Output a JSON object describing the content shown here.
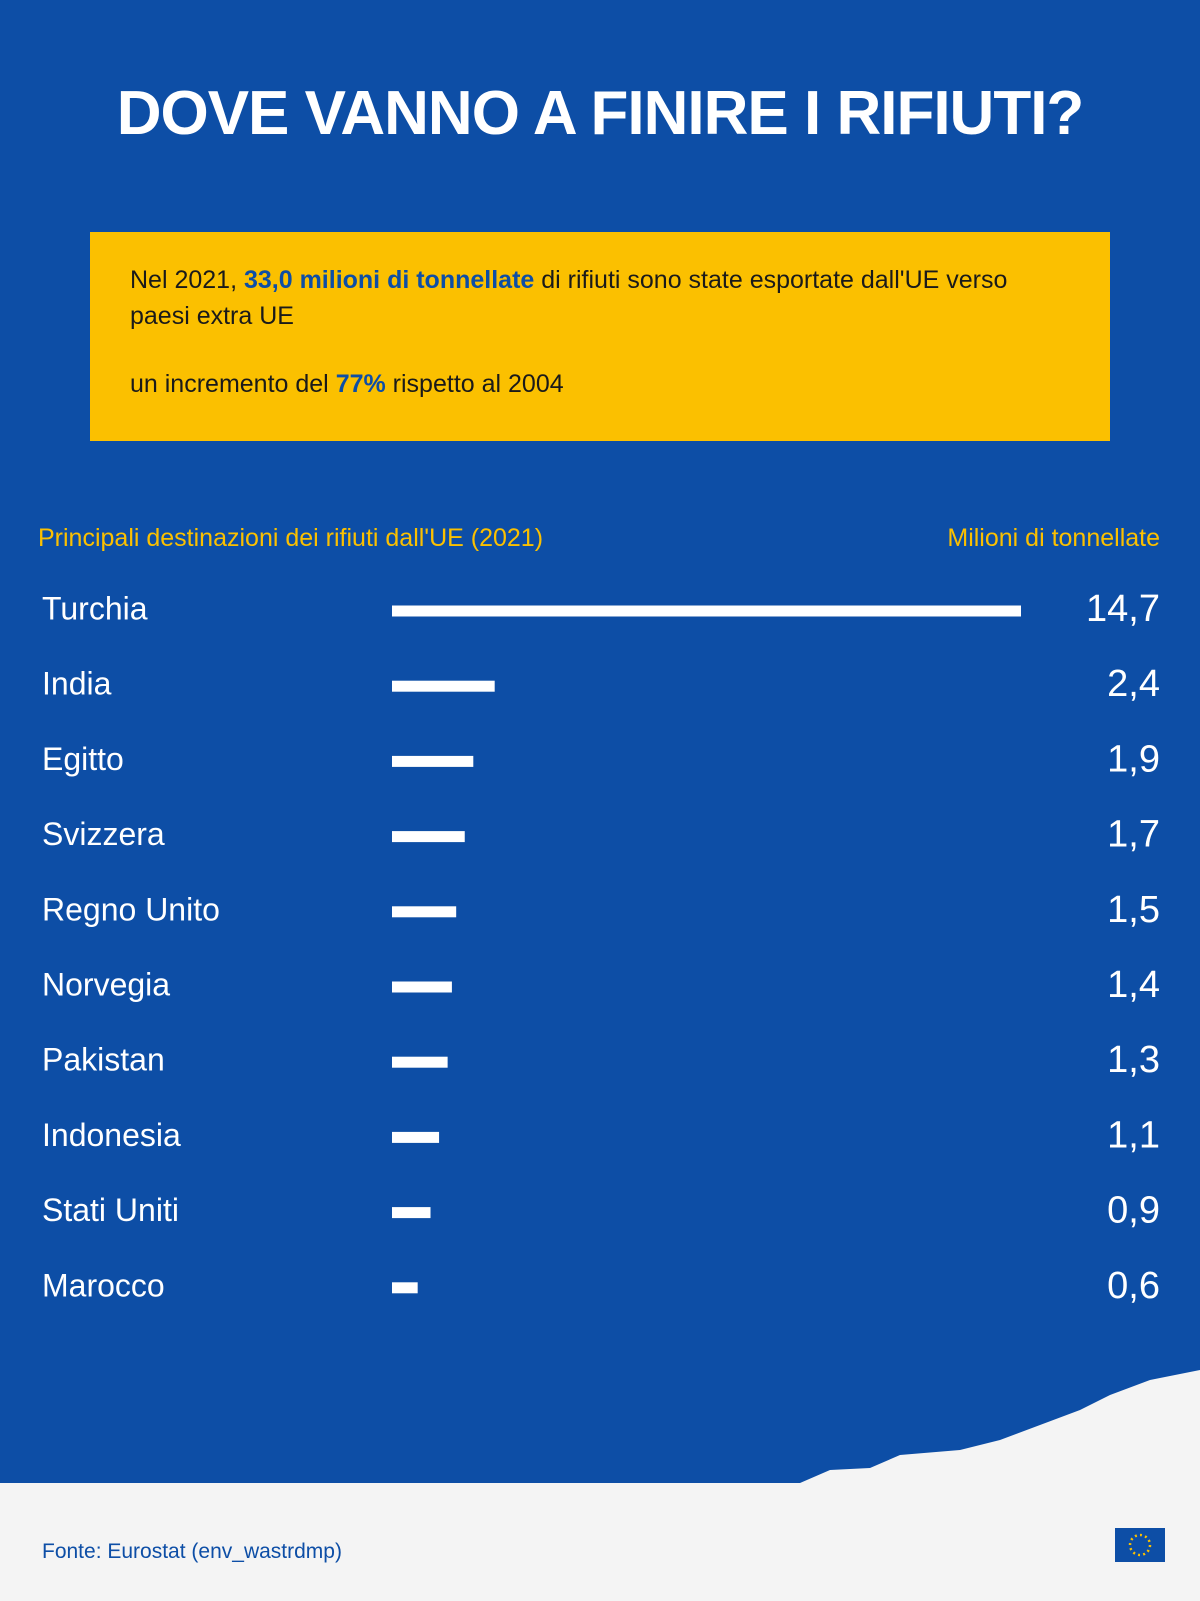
{
  "chart_data": {
    "type": "bar",
    "orientation": "horizontal",
    "title": "DOVE VANNO A FINIRE I RIFIUTI?",
    "highlight": {
      "line1": [
        "Nel 2021, ",
        "33,0 milioni di tonnellate",
        " di rifiuti sono state esportate dall'UE verso paesi extra UE"
      ],
      "line2": [
        "un incremento del ",
        "77%",
        " rispetto al 2004"
      ]
    },
    "subtitle": "Principali destinazioni dei rifiuti dall'UE (2021)",
    "unit_label": "Milioni di tonnellate",
    "categories": [
      "Turchia",
      "India",
      "Egitto",
      "Svizzera",
      "Regno Unito",
      "Norvegia",
      "Pakistan",
      "Indonesia",
      "Stati Uniti",
      "Marocco"
    ],
    "values": [
      14.7,
      2.4,
      1.9,
      1.7,
      1.5,
      1.4,
      1.3,
      1.1,
      0.9,
      0.6
    ],
    "value_labels": [
      "14,7",
      "2,4",
      "1,9",
      "1,7",
      "1,5",
      "1,4",
      "1,3",
      "1,1",
      "0,9",
      "0,6"
    ],
    "color": "#ffffff",
    "source": "Fonte: Eurostat (env_wastrdmp)"
  }
}
